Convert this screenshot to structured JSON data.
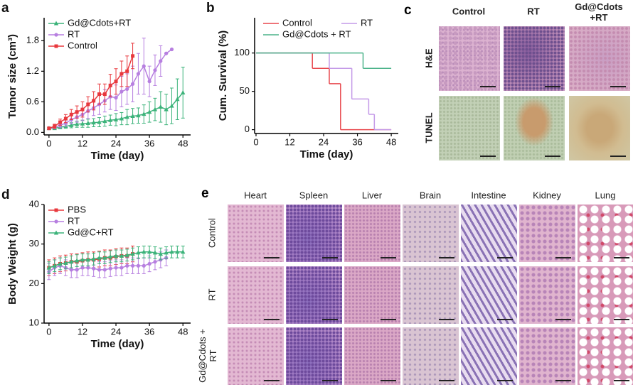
{
  "chart_data": [
    {
      "type": "line",
      "panel_label": "a",
      "xlabel": "Time (day)",
      "ylabel": "Tumor size (cm³)",
      "xlim": [
        -1.75,
        50.75
      ],
      "xticks": [
        0,
        12,
        24,
        36,
        48
      ],
      "ylim": [
        -0.05,
        2.25
      ],
      "yticks": [
        {
          "value": 0,
          "label": "0.0"
        },
        0.6,
        1.2,
        1.8
      ],
      "legend": "upper left",
      "legend_columns": 1,
      "series": [
        {
          "name": "Gd@Cdots+RT",
          "color": "#3cb37a",
          "marker": "^",
          "x": [
            0,
            2,
            4,
            6,
            8,
            10,
            12,
            14,
            16,
            18,
            20,
            22,
            24,
            26,
            28,
            30,
            32,
            34,
            36,
            38,
            40,
            42,
            44,
            46,
            48
          ],
          "values": [
            0.08,
            0.08,
            0.1,
            0.12,
            0.14,
            0.16,
            0.17,
            0.18,
            0.19,
            0.2,
            0.22,
            0.24,
            0.25,
            0.27,
            0.3,
            0.32,
            0.33,
            0.36,
            0.4,
            0.45,
            0.5,
            0.45,
            0.52,
            0.65,
            0.78
          ],
          "errors": [
            0.02,
            0.02,
            0.03,
            0.04,
            0.05,
            0.06,
            0.07,
            0.08,
            0.08,
            0.09,
            0.1,
            0.1,
            0.12,
            0.12,
            0.15,
            0.15,
            0.15,
            0.18,
            0.2,
            0.22,
            0.3,
            0.3,
            0.35,
            0.4,
            0.5
          ]
        },
        {
          "name": "RT",
          "color": "#b77fe0",
          "marker": "o",
          "x": [
            0,
            2,
            4,
            6,
            8,
            10,
            12,
            14,
            16,
            18,
            20,
            22,
            24,
            26,
            28,
            30,
            32,
            34,
            36,
            38,
            40,
            42,
            44
          ],
          "values": [
            0.08,
            0.1,
            0.14,
            0.18,
            0.25,
            0.3,
            0.35,
            0.42,
            0.48,
            0.55,
            0.62,
            0.7,
            0.68,
            0.8,
            0.85,
            0.95,
            1.15,
            1.3,
            1.0,
            1.22,
            1.4,
            1.55,
            1.63
          ],
          "errors": [
            0.02,
            0.03,
            0.05,
            0.06,
            0.08,
            0.1,
            0.12,
            0.15,
            0.15,
            0.2,
            0.22,
            0.25,
            0.25,
            0.3,
            0.3,
            0.35,
            0.4,
            0.55,
            0.3,
            0.3,
            0.3,
            0,
            0
          ]
        },
        {
          "name": "Control",
          "color": "#e8383d",
          "marker": "s",
          "x": [
            0,
            2,
            4,
            6,
            8,
            10,
            12,
            14,
            16,
            18,
            20,
            22,
            24,
            26,
            28,
            30
          ],
          "values": [
            0.08,
            0.12,
            0.2,
            0.27,
            0.35,
            0.4,
            0.45,
            0.55,
            0.62,
            0.75,
            0.75,
            0.92,
            1.0,
            1.15,
            1.2,
            1.5
          ],
          "errors": [
            0.02,
            0.04,
            0.06,
            0.08,
            0.1,
            0.12,
            0.15,
            0.15,
            0.18,
            0.2,
            0.2,
            0.22,
            0.25,
            0.25,
            0.3,
            0.25
          ]
        }
      ]
    },
    {
      "type": "line",
      "step": true,
      "panel_label": "b",
      "xlabel": "Time (day)",
      "ylabel": "Cum. Survival (%)",
      "xlim": [
        -0.5,
        50.5
      ],
      "xticks": [
        0,
        12,
        24,
        36,
        48
      ],
      "ylim": [
        -5,
        146
      ],
      "yticks": [
        0,
        50,
        100
      ],
      "legend": "upper left",
      "legend_columns": 2,
      "series": [
        {
          "name": "Control",
          "color": "#e8474d",
          "x": [
            0,
            20,
            26,
            30,
            48
          ],
          "values": [
            100,
            80,
            60,
            0,
            0
          ]
        },
        {
          "name": "RT",
          "color": "#c49ae8",
          "x": [
            0,
            26,
            34,
            40,
            42,
            48
          ],
          "values": [
            100,
            80,
            40,
            20,
            0,
            0
          ]
        },
        {
          "name": "Gd@Cdots + RT",
          "color": "#4bb38a",
          "x": [
            0,
            38,
            48
          ],
          "values": [
            100,
            80,
            80
          ]
        }
      ]
    },
    {
      "type": "line",
      "panel_label": "d",
      "xlabel": "Time (day)",
      "ylabel": "Body Weight (g)",
      "xlim": [
        -1.75,
        50.75
      ],
      "xticks": [
        0,
        12,
        24,
        36,
        48
      ],
      "ylim": [
        10,
        40
      ],
      "yticks": [
        10,
        20,
        30,
        40
      ],
      "legend": "upper left",
      "legend_columns": 1,
      "series": [
        {
          "name": "PBS",
          "color": "#e8383d",
          "marker": "s",
          "x": [
            0,
            2,
            4,
            6,
            8,
            10,
            12,
            14,
            16,
            18,
            20,
            22,
            24,
            26,
            28,
            30
          ],
          "values": [
            24,
            24.5,
            25,
            25.2,
            25.5,
            25.5,
            25.8,
            26,
            26,
            26.2,
            26.5,
            26.5,
            26.8,
            27,
            27,
            27.5
          ],
          "errors": [
            2,
            2,
            2,
            2,
            2,
            2,
            2,
            2,
            2,
            2,
            2,
            2,
            2,
            2,
            2,
            2
          ]
        },
        {
          "name": "RT",
          "color": "#b77fe0",
          "marker": "o",
          "x": [
            0,
            2,
            4,
            6,
            8,
            10,
            12,
            14,
            16,
            18,
            20,
            22,
            24,
            26,
            28,
            30,
            32,
            34,
            36,
            38,
            40,
            42
          ],
          "values": [
            23,
            24,
            24.5,
            24,
            23.5,
            23.5,
            24,
            24,
            23.8,
            23.5,
            23.5,
            23.8,
            24,
            24,
            24.5,
            24.5,
            24.5,
            24.5,
            25,
            25.5,
            26,
            26.5
          ],
          "errors": [
            2,
            2,
            2,
            2,
            2,
            2,
            2,
            2,
            2,
            2,
            2,
            2,
            2,
            2,
            2,
            2,
            2,
            2,
            2,
            2,
            2,
            2
          ]
        },
        {
          "name": "Gd@C+RT",
          "color": "#3cb37a",
          "marker": "^",
          "x": [
            0,
            2,
            4,
            6,
            8,
            10,
            12,
            14,
            16,
            18,
            20,
            22,
            24,
            26,
            28,
            30,
            32,
            34,
            36,
            38,
            40,
            42,
            44,
            46,
            48
          ],
          "values": [
            24,
            24.5,
            25,
            25.2,
            25.5,
            25.8,
            26,
            26,
            26.2,
            26.5,
            26.5,
            26.8,
            27,
            27,
            27.2,
            27.5,
            27.8,
            28,
            28,
            27.8,
            27.5,
            27.8,
            28,
            28,
            28
          ],
          "errors": [
            1.5,
            1.5,
            1.5,
            1.5,
            1.5,
            1.5,
            1.5,
            1.5,
            1.5,
            1.5,
            1.5,
            1.5,
            1.5,
            1.5,
            1.5,
            1.5,
            1.5,
            1.5,
            1.5,
            1.5,
            1.5,
            1.5,
            1.5,
            1.5,
            1.5
          ]
        }
      ]
    }
  ],
  "panel_c": {
    "label": "c",
    "columns": [
      "Control",
      "RT",
      "Gd@Cdots +RT"
    ],
    "rows": [
      "H&E",
      "TUNEL"
    ]
  },
  "panel_e": {
    "label": "e",
    "columns": [
      "Heart",
      "Spleen",
      "Liver",
      "Brain",
      "Intestine",
      "Kidney",
      "Lung"
    ],
    "rows": [
      "Control",
      "RT",
      "Gd@Cdots + RT"
    ]
  }
}
